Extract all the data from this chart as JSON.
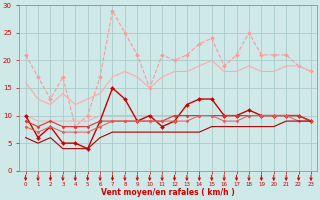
{
  "x": [
    0,
    1,
    2,
    3,
    4,
    5,
    6,
    7,
    8,
    9,
    10,
    11,
    12,
    13,
    14,
    15,
    16,
    17,
    18,
    19,
    20,
    21,
    22,
    23
  ],
  "background_color": "#cfe8e8",
  "grid_color": "#aacccc",
  "xlabel": "Vent moyen/en rafales ( km/h )",
  "xlabel_color": "#cc0000",
  "tick_color": "#cc0000",
  "ylim": [
    0,
    30
  ],
  "xlim": [
    -0.5,
    23.5
  ],
  "yticks": [
    0,
    5,
    10,
    15,
    20,
    25,
    30
  ],
  "lines": [
    {
      "y": [
        21,
        17,
        13,
        17,
        8,
        10,
        17,
        29,
        25,
        21,
        15,
        21,
        20,
        21,
        23,
        24,
        19,
        21,
        25,
        21,
        21,
        21,
        19,
        18
      ],
      "color": "#ff9999",
      "lw": 0.8,
      "marker": "D",
      "ms": 2,
      "ls": "--"
    },
    {
      "y": [
        16,
        13,
        12,
        14,
        12,
        13,
        14,
        17,
        18,
        17,
        15,
        17,
        18,
        18,
        19,
        20,
        18,
        18,
        19,
        18,
        18,
        19,
        19,
        18
      ],
      "color": "#ffaaaa",
      "lw": 0.8,
      "marker": null,
      "ms": 0,
      "ls": "-"
    },
    {
      "y": [
        10,
        9,
        9,
        9,
        9,
        9,
        10,
        10,
        10,
        10,
        10,
        10,
        10,
        10,
        10,
        10,
        10,
        10,
        10,
        10,
        10,
        10,
        10,
        9
      ],
      "color": "#ffaaaa",
      "lw": 0.7,
      "marker": null,
      "ms": 0,
      "ls": "-"
    },
    {
      "y": [
        10,
        6,
        8,
        5,
        5,
        4,
        9,
        15,
        13,
        9,
        10,
        8,
        9,
        12,
        13,
        13,
        10,
        10,
        11,
        10,
        10,
        10,
        10,
        9
      ],
      "color": "#cc0000",
      "lw": 1.0,
      "marker": "D",
      "ms": 2,
      "ls": "-"
    },
    {
      "y": [
        9,
        8,
        9,
        8,
        8,
        8,
        9,
        9,
        9,
        9,
        9,
        9,
        10,
        10,
        10,
        10,
        10,
        10,
        10,
        10,
        10,
        10,
        10,
        9
      ],
      "color": "#dd3333",
      "lw": 0.8,
      "marker": "D",
      "ms": 1.5,
      "ls": "-"
    },
    {
      "y": [
        8,
        7,
        8,
        7,
        7,
        7,
        8,
        9,
        9,
        9,
        9,
        9,
        9,
        9,
        10,
        10,
        9,
        9,
        10,
        10,
        10,
        10,
        9,
        9
      ],
      "color": "#ee5555",
      "lw": 0.7,
      "marker": "D",
      "ms": 1.5,
      "ls": "-"
    },
    {
      "y": [
        6,
        5,
        6,
        4,
        4,
        4,
        6,
        7,
        7,
        7,
        7,
        7,
        7,
        7,
        7,
        8,
        8,
        8,
        8,
        8,
        8,
        9,
        9,
        9
      ],
      "color": "#aa0000",
      "lw": 0.8,
      "marker": null,
      "ms": 0,
      "ls": "-"
    }
  ],
  "arrow_color": "#cc0000"
}
